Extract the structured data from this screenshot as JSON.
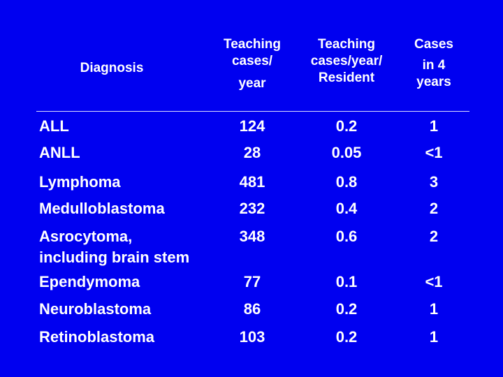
{
  "headers": {
    "diagnosis": [
      "Diagnosis"
    ],
    "teaching_cases_year": [
      "Teaching",
      "cases/",
      "year"
    ],
    "teaching_cases_year_resident": [
      "Teaching",
      "cases/year/",
      "Resident"
    ],
    "cases_4_years": [
      "Cases",
      "in 4",
      "years"
    ]
  },
  "rows": [
    {
      "diagnosis": "ALL",
      "cases_year": "124",
      "per_resident": "0.2",
      "four_years": "1"
    },
    {
      "diagnosis": "ANLL",
      "cases_year": "28",
      "per_resident": "0.05",
      "four_years": "<1"
    },
    {
      "diagnosis": "Lymphoma",
      "cases_year": "481",
      "per_resident": "0.8",
      "four_years": "3"
    },
    {
      "diagnosis": "Medulloblastoma",
      "cases_year": "232",
      "per_resident": "0.4",
      "four_years": "2"
    },
    {
      "diagnosis": "Asrocytoma,",
      "diagnosis_line2": "including brain stem",
      "cases_year": "348",
      "per_resident": "0.6",
      "four_years": "2"
    },
    {
      "diagnosis": "Ependymoma",
      "cases_year": "77",
      "per_resident": "0.1",
      "four_years": "<1"
    },
    {
      "diagnosis": "Neuroblastoma",
      "cases_year": "86",
      "per_resident": "0.2",
      "four_years": "1"
    },
    {
      "diagnosis": "Retinoblastoma",
      "cases_year": "103",
      "per_resident": "0.2",
      "four_years": "1"
    }
  ]
}
